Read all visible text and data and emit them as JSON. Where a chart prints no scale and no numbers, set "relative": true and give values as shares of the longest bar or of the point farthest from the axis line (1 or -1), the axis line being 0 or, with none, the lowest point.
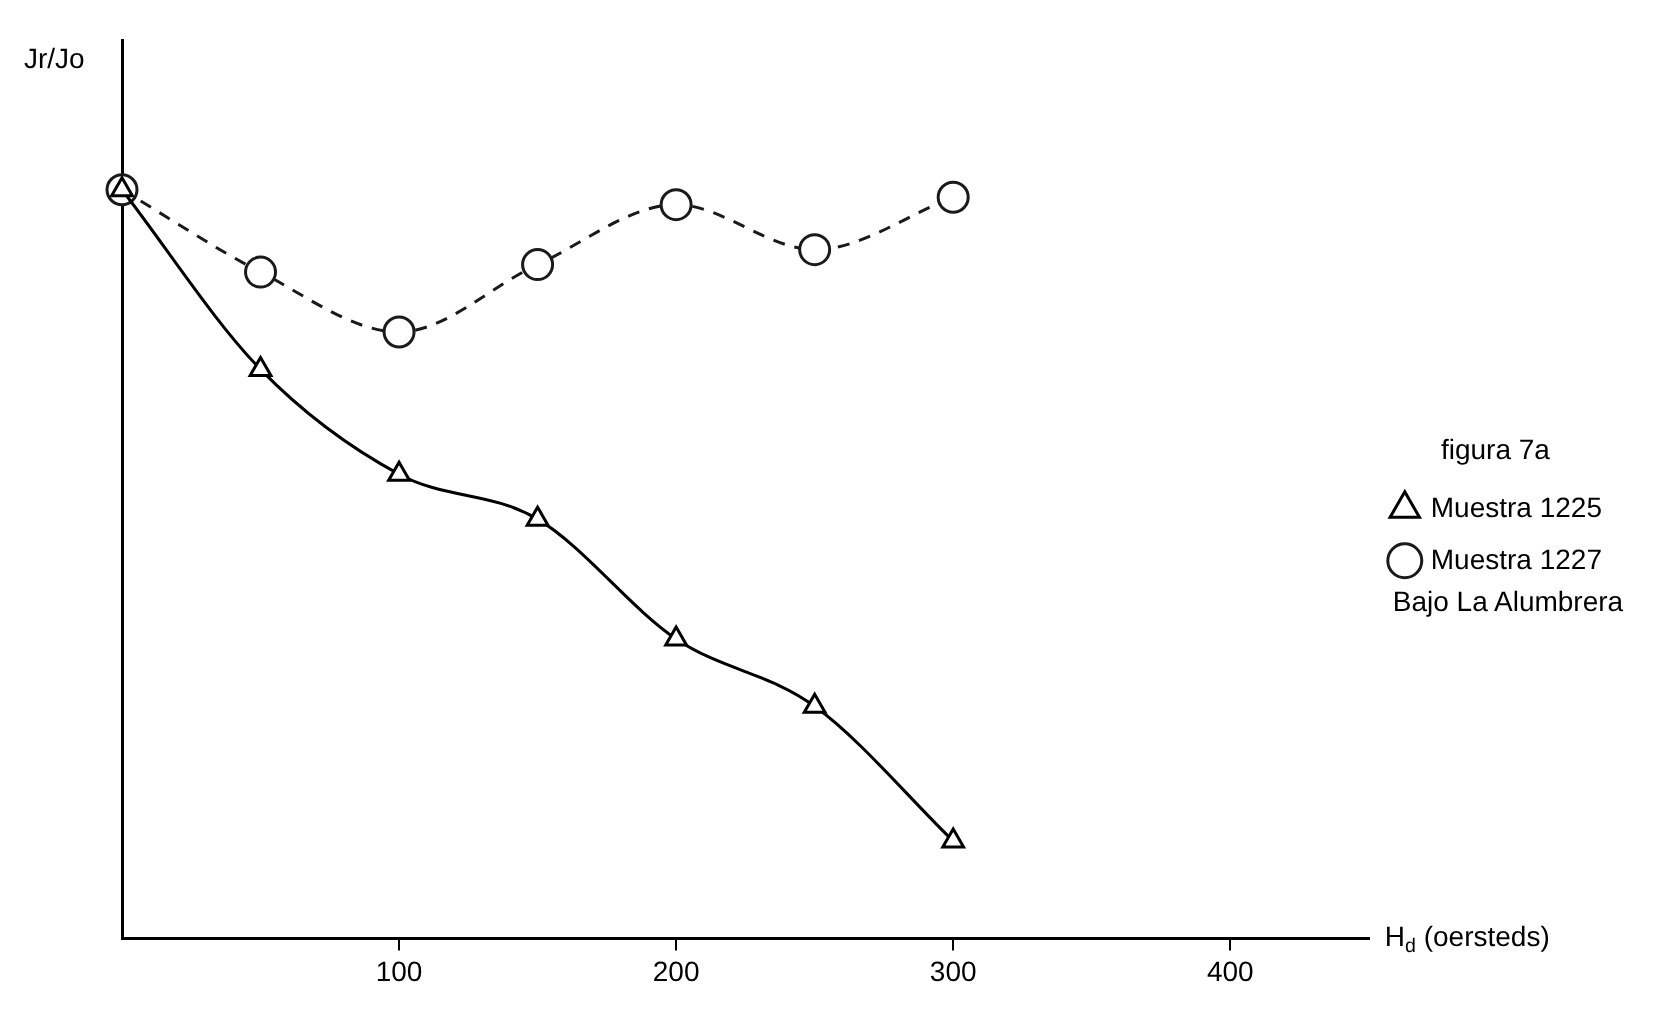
{
  "chart_data": {
    "type": "line",
    "relative": true,
    "ylabel": "Jr/Jo",
    "xlabel": "H$_{d}$ (oersteds)",
    "legend_title": "figura 7a",
    "annotations": [
      "Bajo La Alumbrera"
    ],
    "legend": "right",
    "grid": false,
    "tick_labels": "x",
    "x": [
      0,
      50,
      100,
      150,
      200,
      250,
      300
    ],
    "xlim": [
      0,
      450
    ],
    "xticks": [
      100,
      200,
      300,
      400
    ],
    "series": [
      {
        "name": "Muestra 1225",
        "color": "#000000",
        "marker": "triangle",
        "line_style": "solid",
        "values": [
          1,
          0.76,
          0.62,
          0.56,
          0.4,
          0.31,
          0.13
        ]
      },
      {
        "name": "Muestra 1227",
        "color": "#1a1a1a",
        "marker": "circle",
        "line_style": "dashed",
        "values": [
          1,
          0.89,
          0.81,
          0.9,
          0.98,
          0.92,
          0.99
        ]
      }
    ]
  }
}
